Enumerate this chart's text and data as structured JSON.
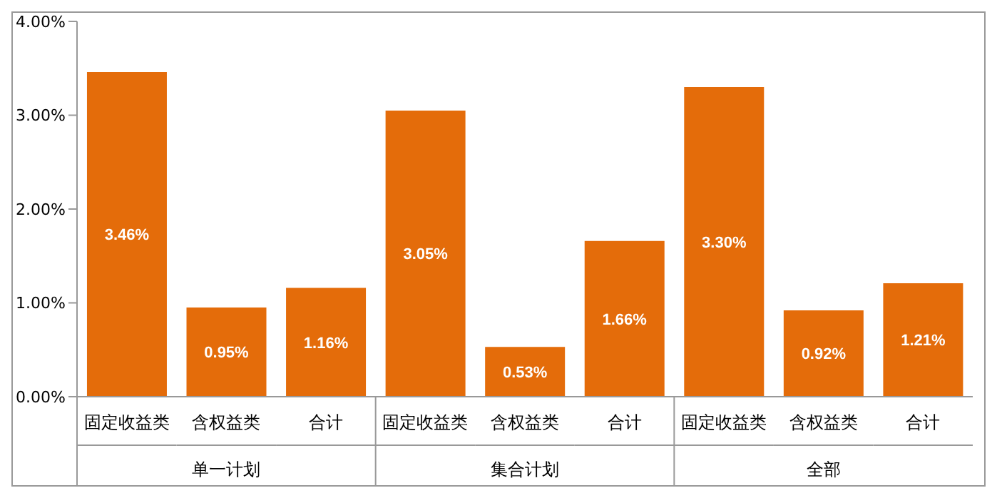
{
  "chart_data": {
    "type": "bar",
    "categories": [
      "固定收益类",
      "含权益类",
      "合计",
      "固定收益类",
      "含权益类",
      "合计",
      "固定收益类",
      "含权益类",
      "合计"
    ],
    "values": [
      3.46,
      0.95,
      1.16,
      3.05,
      0.53,
      1.66,
      3.3,
      0.92,
      1.21
    ],
    "value_labels": [
      "3.46%",
      "0.95%",
      "1.16%",
      "3.05%",
      "0.53%",
      "1.66%",
      "3.30%",
      "0.92%",
      "1.21%"
    ],
    "color": "#e46c0a",
    "ylim": [
      0,
      4
    ],
    "yticks": [
      {
        "value": 0,
        "label": "0.00%"
      },
      {
        "value": 1,
        "label": "1.00%"
      },
      {
        "value": 2,
        "label": "2.00%"
      },
      {
        "value": 3,
        "label": "3.00%"
      },
      {
        "value": 4,
        "label": "4.00%"
      }
    ],
    "grid": false,
    "annotations": [
      "单一计划",
      "集合计划",
      "全部"
    ]
  }
}
